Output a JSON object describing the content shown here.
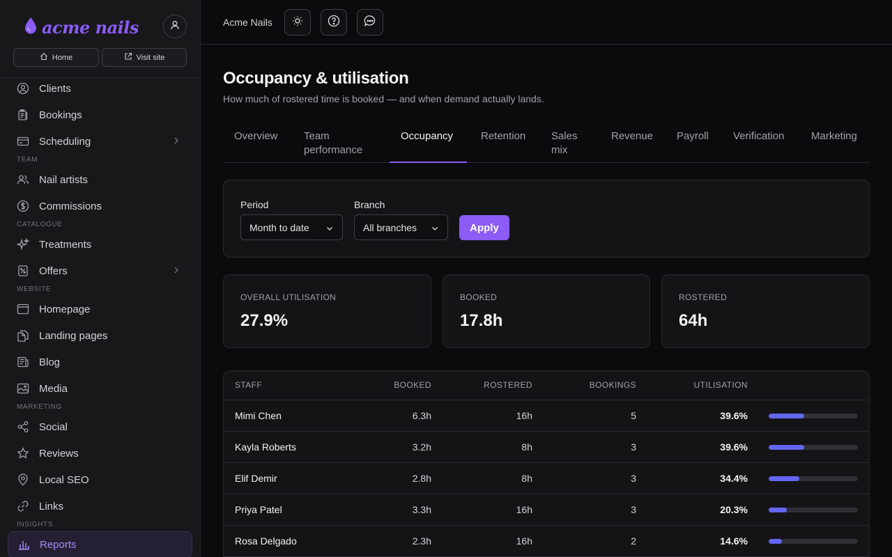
{
  "brand": {
    "name": "acme nails",
    "accent": "#8b5cf6"
  },
  "sidebar": {
    "home_label": "Home",
    "visit_label": "Visit site",
    "sections": {
      "team": "TEAM",
      "catalogue": "CATALOGUE",
      "website": "WEBSITE",
      "marketing": "MARKETING",
      "insights": "INSIGHTS"
    },
    "items": {
      "clients": "Clients",
      "bookings": "Bookings",
      "scheduling": "Scheduling",
      "nail_artists": "Nail artists",
      "commissions": "Commissions",
      "treatments": "Treatments",
      "offers": "Offers",
      "homepage": "Homepage",
      "landing_pages": "Landing pages",
      "blog": "Blog",
      "media": "Media",
      "social": "Social",
      "reviews": "Reviews",
      "local_seo": "Local SEO",
      "links": "Links",
      "reports": "Reports"
    }
  },
  "topbar": {
    "title": "Acme Nails"
  },
  "page": {
    "title": "Occupancy & utilisation",
    "subtitle": "How much of rostered time is booked — and when demand actually lands."
  },
  "tabs": {
    "overview": "Overview",
    "team_l1": "Team",
    "team_l2": "performance",
    "occupancy": "Occupancy",
    "retention": "Retention",
    "sales_l1": "Sales",
    "sales_l2": "mix",
    "revenue": "Revenue",
    "payroll": "Payroll",
    "verification": "Verification",
    "marketing": "Marketing"
  },
  "filters": {
    "period_label": "Period",
    "period_value": "Month to date",
    "branch_label": "Branch",
    "branch_value": "All branches",
    "apply_label": "Apply"
  },
  "stats": {
    "overall_label": "OVERALL UTILISATION",
    "overall_value": "27.9%",
    "booked_label": "BOOKED",
    "booked_value": "17.8h",
    "rostered_label": "ROSTERED",
    "rostered_value": "64h"
  },
  "table": {
    "headers": {
      "staff": "STAFF",
      "booked": "BOOKED",
      "rostered": "ROSTERED",
      "bookings": "BOOKINGS",
      "utilisation": "UTILISATION"
    },
    "rows": [
      {
        "staff": "Mimi Chen",
        "booked": "6.3h",
        "rostered": "16h",
        "bookings": "5",
        "utilisation": "39.6%",
        "fraction": 0.396
      },
      {
        "staff": "Kayla Roberts",
        "booked": "3.2h",
        "rostered": "8h",
        "bookings": "3",
        "utilisation": "39.6%",
        "fraction": 0.396
      },
      {
        "staff": "Elif Demir",
        "booked": "2.8h",
        "rostered": "8h",
        "bookings": "3",
        "utilisation": "34.4%",
        "fraction": 0.344
      },
      {
        "staff": "Priya Patel",
        "booked": "3.3h",
        "rostered": "16h",
        "bookings": "3",
        "utilisation": "20.3%",
        "fraction": 0.203
      },
      {
        "staff": "Rosa Delgado",
        "booked": "2.3h",
        "rostered": "16h",
        "bookings": "2",
        "utilisation": "14.6%",
        "fraction": 0.146
      }
    ]
  }
}
